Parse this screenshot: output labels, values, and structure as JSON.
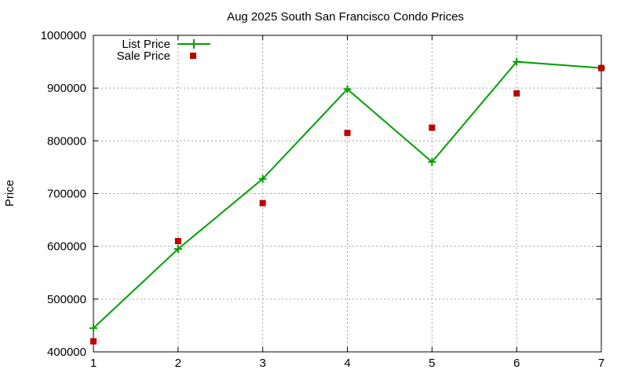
{
  "chart_data": {
    "type": "line",
    "title": "Aug 2025 South San Francisco Condo Prices",
    "xlabel": "",
    "ylabel": "Price",
    "x": [
      1,
      2,
      3,
      4,
      5,
      6,
      7
    ],
    "xlim": [
      1,
      7
    ],
    "ylim": [
      400000,
      1000000
    ],
    "y_ticks": [
      400000,
      500000,
      600000,
      700000,
      800000,
      900000,
      1000000
    ],
    "x_ticks": [
      1,
      2,
      3,
      4,
      5,
      6,
      7
    ],
    "y_tick_labels": [
      "400000",
      "500000",
      "600000",
      "700000",
      "800000",
      "900000",
      "1000000"
    ],
    "x_tick_labels": [
      "1",
      "2",
      "3",
      "4",
      "5",
      "6",
      "7"
    ],
    "grid": true,
    "legend_position": "top-left",
    "series": [
      {
        "name": "List Price",
        "style": "line-with-plus-markers",
        "color": "#00a000",
        "values": [
          445000,
          595000,
          728000,
          898000,
          760000,
          950000,
          938000
        ]
      },
      {
        "name": "Sale Price",
        "style": "square-markers",
        "color": "#c00000",
        "values": [
          420000,
          610000,
          682000,
          815000,
          825000,
          890000,
          938000
        ]
      }
    ]
  }
}
